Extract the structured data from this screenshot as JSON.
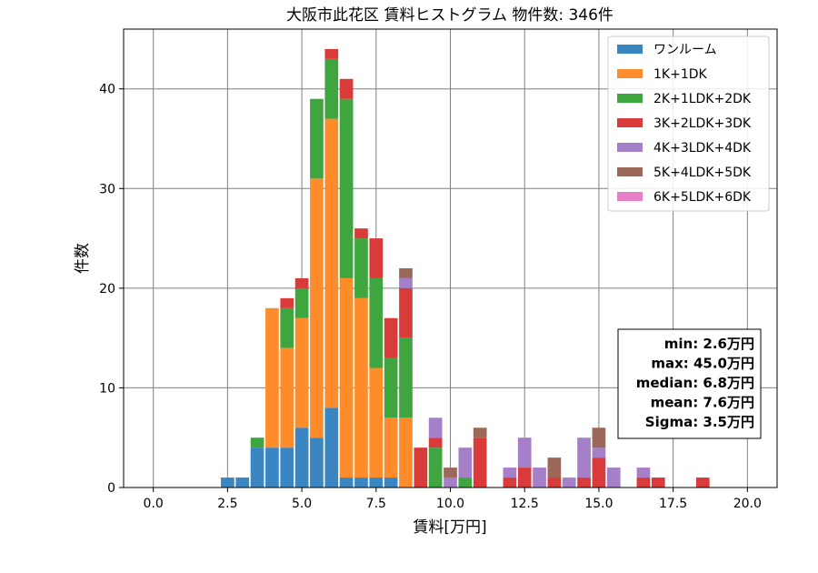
{
  "chart_data": {
    "type": "bar",
    "stacked": true,
    "title": "大阪市此花区 賃料ヒストグラム  物件数: 346件",
    "xlabel": "賃料[万円]",
    "ylabel": "件数",
    "xlim": [
      -1.0,
      21.0
    ],
    "ylim": [
      0,
      46
    ],
    "xticks": [
      "0.0",
      "2.5",
      "5.0",
      "7.5",
      "10.0",
      "12.5",
      "15.0",
      "17.5",
      "20.0"
    ],
    "xtick_values": [
      0,
      2.5,
      5,
      7.5,
      10,
      12.5,
      15,
      17.5,
      20
    ],
    "yticks": [
      "0",
      "10",
      "20",
      "30",
      "40"
    ],
    "ytick_values": [
      0,
      10,
      20,
      30,
      40
    ],
    "grid": true,
    "legend_position": "top-right",
    "bin_width": 0.5,
    "bins": [
      2.5,
      3.0,
      3.5,
      4.0,
      4.5,
      5.0,
      5.5,
      6.0,
      6.5,
      7.0,
      7.5,
      8.0,
      8.5,
      9.0,
      9.5,
      10.0,
      10.5,
      11.0,
      12.0,
      12.5,
      13.0,
      13.5,
      14.0,
      14.5,
      15.0,
      15.5,
      16.5,
      17.0,
      18.5
    ],
    "series": [
      {
        "name": "ワンルーム",
        "color": "#3a86c2",
        "values": [
          1,
          1,
          4,
          4,
          4,
          6,
          5,
          8,
          1,
          1,
          1,
          1,
          0,
          0,
          0,
          0,
          0,
          0,
          0,
          0,
          0,
          0,
          0,
          0,
          0,
          0,
          0,
          0,
          0
        ]
      },
      {
        "name": "1K+1DK",
        "color": "#ff8c2a",
        "values": [
          0,
          0,
          0,
          14,
          10,
          11,
          26,
          29,
          20,
          18,
          11,
          6,
          7,
          0,
          0,
          0,
          0,
          0,
          0,
          0,
          0,
          0,
          0,
          0,
          0,
          0,
          0,
          0,
          0
        ]
      },
      {
        "name": "2K+1LDK+2DK",
        "color": "#3fa53f",
        "values": [
          0,
          0,
          1,
          0,
          4,
          3,
          8,
          6,
          18,
          6,
          9,
          6,
          8,
          0,
          4,
          0,
          1,
          0,
          0,
          0,
          0,
          0,
          0,
          0,
          0,
          0,
          0,
          0,
          0
        ]
      },
      {
        "name": "3K+2LDK+3DK",
        "color": "#d93b3b",
        "values": [
          0,
          0,
          0,
          0,
          1,
          1,
          0,
          1,
          2,
          1,
          4,
          4,
          5,
          4,
          1,
          0,
          0,
          5,
          1,
          2,
          0,
          1,
          0,
          1,
          3,
          0,
          1,
          1,
          1
        ]
      },
      {
        "name": "4K+3LDK+4DK",
        "color": "#a67fc9",
        "values": [
          0,
          0,
          0,
          0,
          0,
          0,
          0,
          0,
          0,
          0,
          0,
          0,
          1,
          0,
          2,
          1,
          3,
          0,
          1,
          3,
          2,
          0,
          1,
          4,
          1,
          2,
          1,
          0,
          0
        ]
      },
      {
        "name": "5K+4LDK+5DK",
        "color": "#9c685a",
        "values": [
          0,
          0,
          0,
          0,
          0,
          0,
          0,
          0,
          0,
          0,
          0,
          0,
          1,
          0,
          0,
          1,
          0,
          1,
          0,
          0,
          0,
          2,
          0,
          0,
          2,
          0,
          0,
          0,
          0
        ]
      },
      {
        "name": "6K+5LDK+6DK",
        "color": "#e67fc5",
        "values": [
          0,
          0,
          0,
          0,
          0,
          0,
          0,
          0,
          0,
          0,
          0,
          0,
          0,
          0,
          0,
          0,
          0,
          0,
          0,
          0,
          0,
          0,
          0,
          0,
          0,
          0,
          0,
          0,
          0
        ]
      }
    ],
    "stats": [
      "min: 2.6万円",
      "max: 45.0万円",
      "median: 6.8万円",
      "mean: 7.6万円",
      "Sigma: 3.5万円"
    ]
  }
}
